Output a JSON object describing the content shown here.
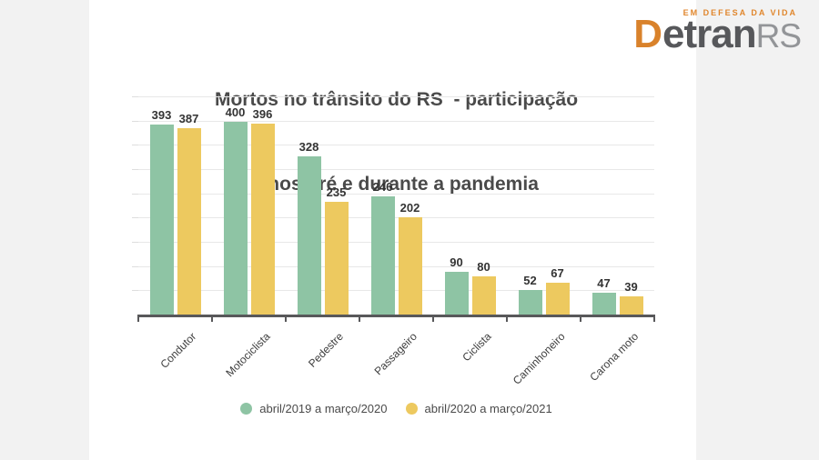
{
  "page": {
    "background": "#f2f2f2",
    "card_background": "#ffffff"
  },
  "logo": {
    "tagline": "EM DEFESA DA VIDA",
    "brand_d": "D",
    "brand_etran": "etran",
    "brand_rs": "RS",
    "orange": "#d9822b",
    "dark_gray": "#57585b",
    "light_gray": "#939598"
  },
  "chart_data": {
    "type": "bar",
    "title_line1": "Mortos no trânsito do RS  - participação",
    "title_line2": "Anos pré e durante a pandemia",
    "categories": [
      "Condutor",
      "Motociclista",
      "Pedestre",
      "Passageiro",
      "Ciclista",
      "Caminhoneiro",
      "Carona moto"
    ],
    "series": [
      {
        "name": "abril/2019 a março/2020",
        "color": "#8ec4a4",
        "values": [
          393,
          400,
          328,
          246,
          90,
          52,
          47
        ]
      },
      {
        "name": "abril/2020 a março/2021",
        "color": "#edc95f",
        "values": [
          387,
          396,
          235,
          202,
          80,
          67,
          39
        ]
      }
    ],
    "xlabel": "",
    "ylabel": "",
    "ylim": [
      0,
      450
    ],
    "grid_step": 50,
    "grid": true,
    "legend_position": "bottom",
    "axis_color": "#58585a",
    "grid_color": "#e8e8e8",
    "value_label_color": "#333333",
    "tick_label_color": "#3d3d3d"
  }
}
